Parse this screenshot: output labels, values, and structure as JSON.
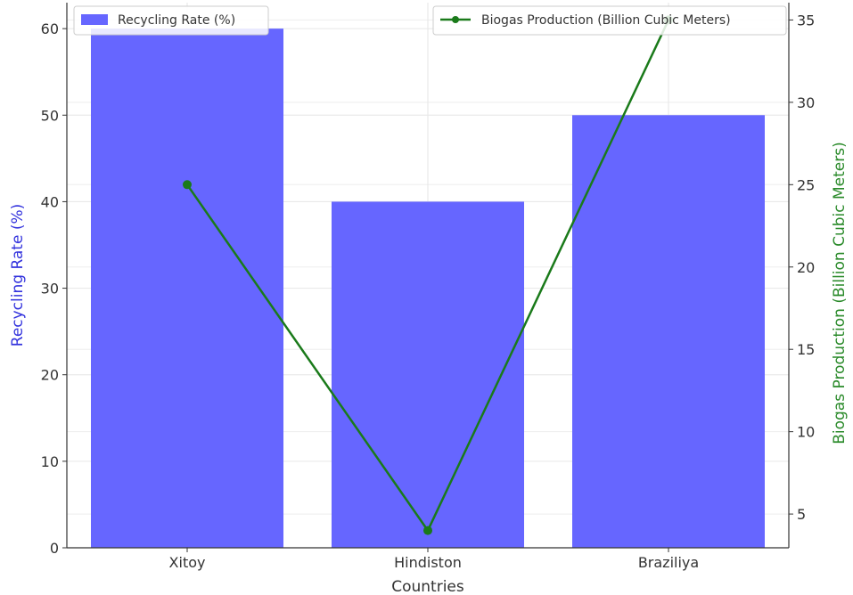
{
  "chart_data": {
    "type": "bar+line",
    "categories": [
      "Xitoy",
      "Hindiston",
      "Braziliya"
    ],
    "xlabel": "Countries",
    "series": [
      {
        "name": "Recycling Rate (%)",
        "type": "bar",
        "axis": "left",
        "color": "#6666ff",
        "values": [
          60,
          40,
          50
        ]
      },
      {
        "name": "Biogas Production (Billion Cubic Meters)",
        "type": "line",
        "axis": "right",
        "color": "#1a7a1a",
        "marker": "circle",
        "values": [
          25,
          4,
          35
        ]
      }
    ],
    "y_left": {
      "label": "Recycling Rate (%)",
      "label_color": "#3333dd",
      "range": [
        0,
        63
      ],
      "ticks": [
        0,
        10,
        20,
        30,
        40,
        50,
        60
      ]
    },
    "y_right": {
      "label": "Biogas Production (Billion Cubic Meters)",
      "label_color": "#2a8a2a",
      "range": [
        2.95,
        36.05
      ],
      "ticks": [
        5,
        10,
        15,
        20,
        25,
        30,
        35
      ]
    },
    "grid": true,
    "legend_bar_position": "top-left",
    "legend_line_position": "top-right"
  }
}
